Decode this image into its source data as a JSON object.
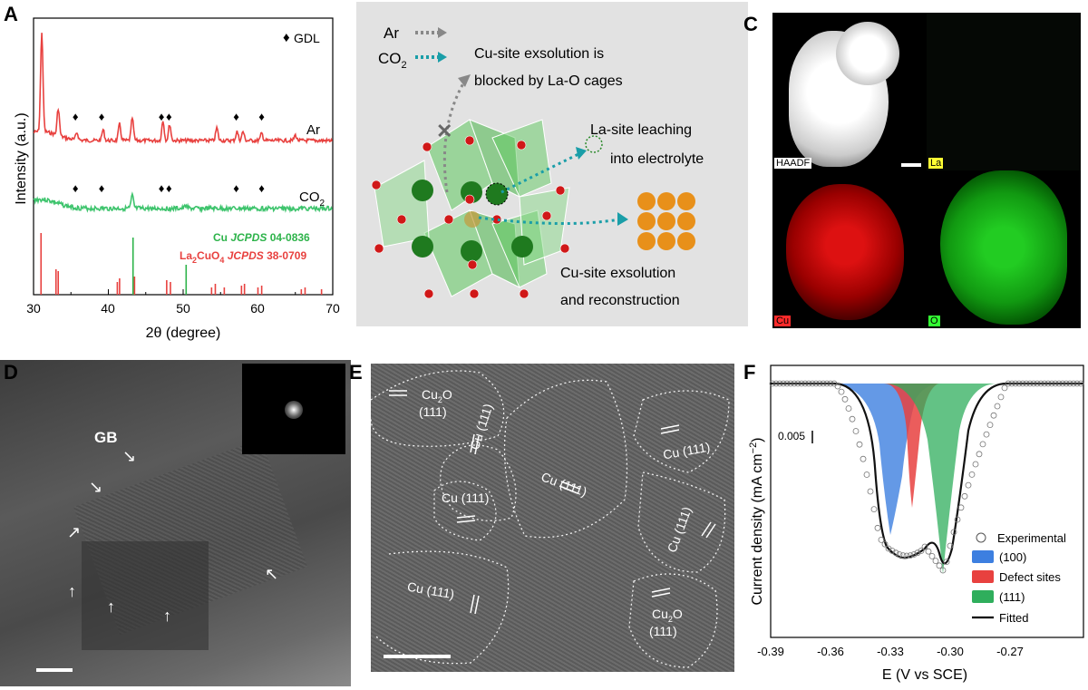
{
  "panels": {
    "A": {
      "label": "A",
      "legend": "GDL",
      "series": [
        {
          "name": "Ar",
          "color": "#e8413f"
        },
        {
          "name": "CO",
          "sub": "2",
          "color": "#3ec46d"
        }
      ],
      "ref_cu": {
        "pre": "Cu ",
        "ital": "JCPDS",
        "post": " 04-0836",
        "color": "#2db34a"
      },
      "ref_la": {
        "pre": "La",
        "sub1": "2",
        "mid": "CuO",
        "sub2": "4",
        "ital": " JCPDS",
        "post": " 38-0709",
        "color": "#e8413f"
      },
      "ylabel": "Intensity (a.u.)",
      "xlabel": "2θ (degree)",
      "xticks": [
        "30",
        "40",
        "50",
        "60",
        "70"
      ]
    },
    "B": {
      "label": "B",
      "ar": "Ar",
      "co2": "CO",
      "co2_sub": "2",
      "blocked_1": "Cu-site exsolution is",
      "blocked_2": "blocked by La-O cages",
      "leach_1": "La-site leaching",
      "leach_2": "into electrolyte",
      "exsol_1": "Cu-site exsolution",
      "exsol_2": "and reconstruction"
    },
    "C": {
      "label": "C",
      "tiles": [
        {
          "tag": "HAADF",
          "tagColor": "#ffffff",
          "tagText": "#000000"
        },
        {
          "tag": "La",
          "tagColor": "#ffff33",
          "tagText": "#000000"
        },
        {
          "tag": "Cu",
          "tagColor": "#ff2a2a",
          "tagText": "#000000"
        },
        {
          "tag": "O",
          "tagColor": "#33ff33",
          "tagText": "#000000"
        }
      ]
    },
    "D": {
      "label": "D",
      "gb": "GB"
    },
    "E": {
      "label": "E",
      "cu2o_top": "Cu",
      "cu2o_top_sub": "2",
      "cu2o_top_o": "O",
      "cu2o_top_hkl": "(111)",
      "cu111": "Cu (111)",
      "cu2o_bot": "Cu",
      "cu2o_bot_sub": "2",
      "cu2o_bot_o": "O",
      "cu2o_bot_hkl": "(111)"
    },
    "F": {
      "label": "F",
      "ylabel": "Current density (mA cm",
      "ylabel_sup": "−2",
      "ylabel_end": ")",
      "scale": "0.005",
      "xlabel": "E (V vs SCE)",
      "xticks": [
        "-0.39",
        "-0.36",
        "-0.33",
        "-0.30",
        "-0.27"
      ],
      "legend": [
        {
          "name": "Experimental",
          "kind": "circle"
        },
        {
          "name": "(100)",
          "kind": "box",
          "color": "#3d7fe0"
        },
        {
          "name": "Defect sites",
          "kind": "box",
          "color": "#e8413f"
        },
        {
          "name": "(111)",
          "kind": "box",
          "color": "#2fae5c"
        },
        {
          "name": "Fitted",
          "kind": "line"
        }
      ]
    }
  },
  "chart_data": [
    {
      "type": "line",
      "panel": "A",
      "xlabel": "2θ (degree)",
      "ylabel": "Intensity (a.u.)",
      "xlim": [
        30,
        70
      ],
      "series": [
        {
          "name": "Ar",
          "peaks_x": [
            31.1,
            33.3,
            35.8,
            39.3,
            41.5,
            43.2,
            47.3,
            48.2,
            54.5,
            57.2,
            58.0,
            60.5,
            65.0
          ]
        },
        {
          "name": "CO2",
          "peaks_x": [
            43.2,
            50.4
          ]
        }
      ],
      "reference": [
        {
          "name": "Cu JCPDS 04-0836",
          "x": [
            43.3,
            50.4
          ]
        },
        {
          "name": "La2CuO4 JCPDS 38-0709",
          "x": [
            31.0,
            33.0,
            33.3,
            41.2,
            41.5,
            43.5,
            47.8,
            48.3,
            53.8,
            54.3,
            55.5,
            57.8,
            58.2,
            60.0,
            60.5,
            65.8,
            66.3,
            68.5
          ]
        },
        {
          "name": "GDL",
          "x": [
            35.8,
            39.3,
            47.3,
            48.3,
            57.3,
            60.7
          ]
        }
      ]
    },
    {
      "type": "line",
      "panel": "F",
      "xlabel": "E (V vs SCE)",
      "ylabel": "Current density (mA cm−2)",
      "xlim": [
        -0.39,
        -0.24
      ],
      "series": [
        {
          "name": "(100)",
          "center": -0.334
        },
        {
          "name": "Defect sites",
          "center": -0.322
        },
        {
          "name": "(111)",
          "center": -0.307
        }
      ]
    }
  ]
}
